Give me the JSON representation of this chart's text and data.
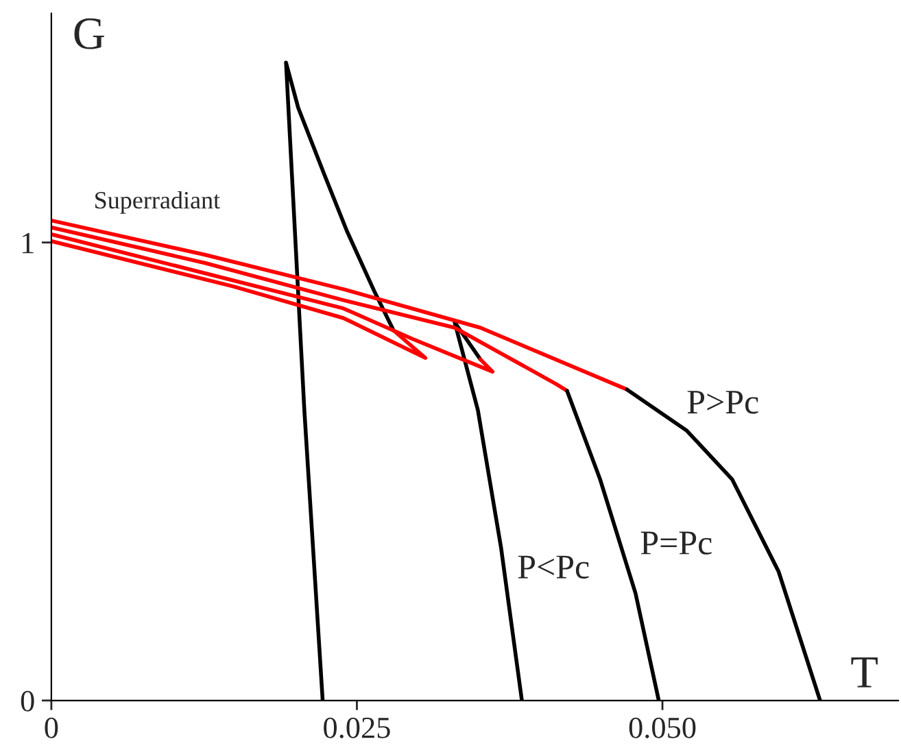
{
  "chart_data": {
    "type": "line",
    "xlabel": "T",
    "ylabel": "G",
    "xlim": [
      0,
      0.0693
    ],
    "ylim": [
      0,
      1.5
    ],
    "xticks": [
      0,
      {
        "value": 0.025,
        "label": "0.025"
      },
      {
        "value": 0.05,
        "label": "0.050"
      }
    ],
    "yticks": [
      0,
      1
    ],
    "grid": false,
    "legend": false,
    "marker": "none",
    "line_style": "solid",
    "series": [
      {
        "color": "#000000",
        "x": [
          0.0222,
          0.0207,
          0.0192,
          0.0202,
          0.0224,
          0.0242,
          0.0264,
          0.028
        ],
        "values": [
          0,
          0.634,
          1.393,
          1.294,
          1.144,
          1.024,
          0.895,
          0.808
        ]
      },
      {
        "color": "#ff0000",
        "x": [
          0.028,
          0.0306,
          0.0239,
          0.0149,
          0
        ],
        "values": [
          0.808,
          0.748,
          0.835,
          0.904,
          1.003
        ]
      },
      {
        "color": "#000000",
        "x": [
          0.0385,
          0.0368,
          0.0349,
          0.033,
          0.0351
        ],
        "values": [
          0,
          0.333,
          0.634,
          0.826,
          0.745
        ]
      },
      {
        "color": "#ff0000",
        "x": [
          0.0351,
          0.0361,
          0.0295,
          0.0239,
          0.0115,
          0
        ],
        "values": [
          0.745,
          0.718,
          0.79,
          0.856,
          0.94,
          1.018
        ]
      },
      {
        "color": "#ff0000",
        "x": [
          0,
          0.0126,
          0.0239,
          0.033,
          0.0413,
          0.0422
        ],
        "values": [
          1.033,
          0.955,
          0.874,
          0.814,
          0.691,
          0.676
        ]
      },
      {
        "color": "#000000",
        "x": [
          0.0422,
          0.0449,
          0.0478,
          0.0497
        ],
        "values": [
          0.676,
          0.483,
          0.234,
          0
        ]
      },
      {
        "color": "#ff0000",
        "x": [
          0,
          0.0126,
          0.0239,
          0.0351,
          0.0471
        ],
        "values": [
          1.048,
          0.973,
          0.898,
          0.814,
          0.679
        ]
      },
      {
        "color": "#000000",
        "x": [
          0.0471,
          0.052,
          0.0557,
          0.0595,
          0.0629
        ],
        "values": [
          0.679,
          0.589,
          0.483,
          0.282,
          0
        ]
      }
    ],
    "annotations": [
      "Superradiant",
      "P<Pc",
      "P=Pc",
      "P>Pc"
    ]
  }
}
